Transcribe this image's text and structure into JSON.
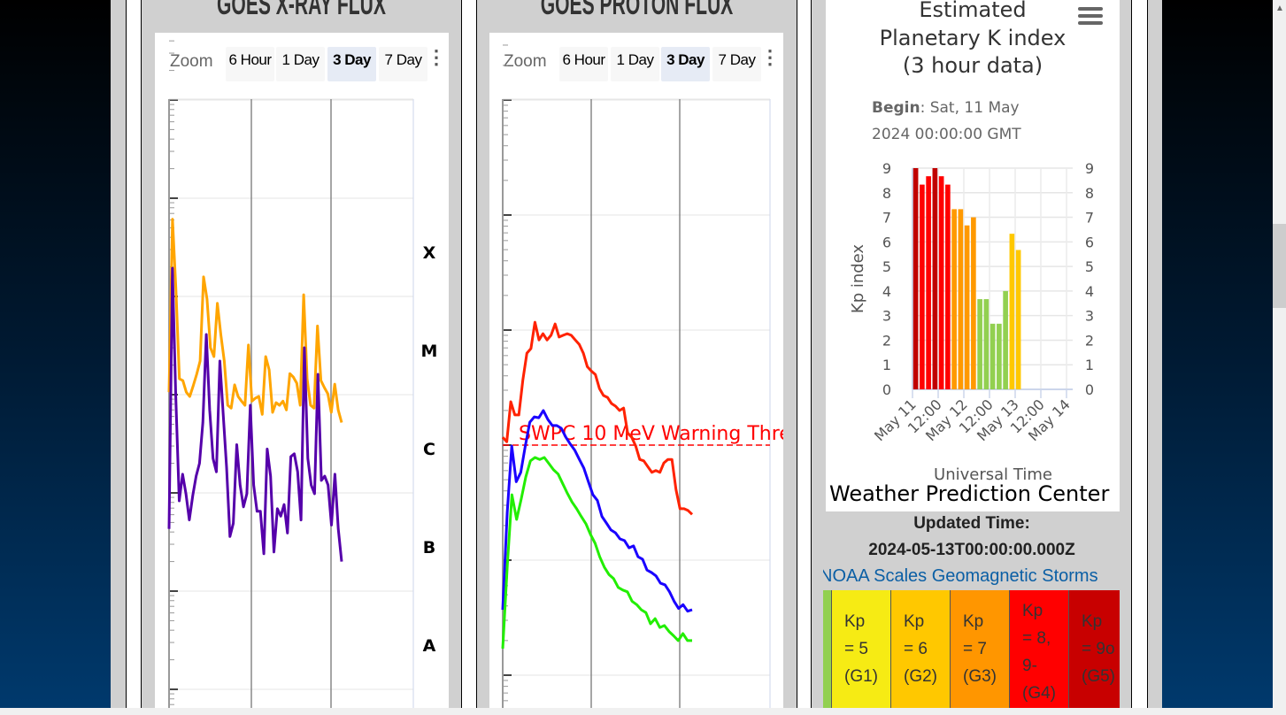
{
  "xray_panel": {
    "title": "GOES X-RAY FLUX",
    "zoom_label": "Zoom",
    "zoom_buttons": [
      "6 Hour",
      "1 Day",
      "3 Day",
      "7 Day"
    ],
    "selected_zoom": "3 Day",
    "class_labels": [
      "X",
      "M",
      "C",
      "B",
      "A"
    ]
  },
  "proton_panel": {
    "title": "GOES PROTON FLUX",
    "zoom_label": "Zoom",
    "zoom_buttons": [
      "6 Hour",
      "1 Day",
      "3 Day",
      "7 Day"
    ],
    "selected_zoom": "3 Day",
    "threshold_label": "SWPC 10 MeV Warning Thre"
  },
  "kp_panel": {
    "title_lines": [
      "Estimated",
      "Planetary K index",
      "(3 hour data)"
    ],
    "begin_label": "Begin",
    "begin_value": ": Sat, 11 May",
    "begin_value_2": "2024 00:00:00 GMT",
    "footer": "Weather Prediction Center",
    "updated_label": "Updated Time:",
    "updated_value": "2024-05-13T00:00:00.000Z",
    "noaa_link": "NOAA Scales Geomagnetic Storms",
    "menu_icon": "hamburger-menu-icon"
  },
  "storm_scale": [
    {
      "lines": [
        "Kp",
        "= 5",
        "(G1)"
      ],
      "color": "#f6eb14"
    },
    {
      "lines": [
        "Kp",
        "= 6",
        "(G2)"
      ],
      "color": "#ffc800"
    },
    {
      "lines": [
        "Kp",
        "= 7",
        "(G3)"
      ],
      "color": "#ff9600"
    },
    {
      "lines": [
        "Kp",
        "= 8,",
        "9-",
        "(G4)"
      ],
      "color": "#ff0000"
    },
    {
      "lines": [
        "Kp",
        "= 9o",
        "(G5)"
      ],
      "color": "#c80000"
    }
  ],
  "chart_data": [
    {
      "type": "line",
      "title": "GOES X-RAY FLUX",
      "y_scale": "log",
      "ylim": [
        1e-09,
        0.01
      ],
      "grid": true,
      "units_note_visible": false,
      "series": [
        {
          "color": "#ffa500",
          "values": [
            1.06e-05,
            0.00061,
            0.000116,
            1.45e-05,
            1.39e-05,
            1.06e-05,
            9.6e-06,
            1.23e-05,
            1.61e-05,
            2.2e-05,
            0.000158,
            9.4e-05,
            3e-05,
            2.44e-05,
            8.5e-05,
            4.1e-05,
            2.2e-05,
            7.8e-06,
            7.3e-06,
            1.26e-05,
            9.6e-06,
            8.6e-06,
            7.8e-06,
            3.2e-05,
            8.6e-06,
            9.2e-06,
            9.6e-06,
            6.3e-06,
            2.44e-05,
            1.79e-05,
            6.6e-06,
            8.3e-06,
            7.8e-06,
            8.6e-06,
            7e-06,
            1.64e-05,
            1.51e-05,
            1.31e-05,
            7.8e-06,
            0.000104,
            1.45e-05,
            7.8e-06,
            7.3e-06,
            5e-05,
            1.39e-05,
            1.18e-05,
            1.02e-05,
            6.6e-06,
            1.28e-05,
            7e-06,
            5.2e-06
          ]
        },
        {
          "color": "#5500aa",
          "values": [
            4.3e-07,
            0.000194,
            9.6e-06,
            8.3e-07,
            1.55e-06,
            9.8e-07,
            5.3e-07,
            9.4e-07,
            1.48e-06,
            2e-06,
            5.2e-06,
            4.1e-05,
            7e-06,
            2.24e-06,
            1.64e-06,
            2.2e-05,
            6.3e-06,
            1.82e-06,
            3.6e-07,
            4.9e-07,
            3.1e-06,
            1.2e-06,
            7.2e-07,
            9.8e-07,
            7.8e-06,
            1.2e-06,
            6.5e-07,
            6.5e-07,
            2.4e-07,
            2.8e-06,
            1.48e-06,
            2.5e-07,
            6.9e-07,
            5.8e-07,
            7.6e-07,
            3.9e-07,
            2.34e-06,
            2.5e-06,
            1.64e-06,
            5.3e-07,
            3e-05,
            2.24e-06,
            1.2e-06,
            9.8e-07,
            1.61e-05,
            1.34e-06,
            1.48e-06,
            1.2e-06,
            4.7e-07,
            1.55e-06,
            4.3e-07,
            2e-07
          ]
        }
      ],
      "class_labels": [
        "X",
        "M",
        "C",
        "B",
        "A"
      ]
    },
    {
      "type": "line",
      "title": "GOES PROTON FLUX",
      "y_scale": "log",
      "ylim": [
        0.01,
        10000
      ],
      "grid": true,
      "threshold": {
        "value": 10,
        "label": "SWPC 10 MeV Warning Thre",
        "color": "#ff0000"
      },
      "series": [
        {
          "color": "#ff2200",
          "values": [
            11.7,
            10.7,
            23.8,
            18.3,
            18.3,
            37,
            63,
            69,
            117,
            82,
            93,
            82,
            90,
            113,
            87,
            90,
            93,
            90,
            82,
            75,
            63,
            48,
            44,
            41,
            31,
            27,
            26,
            23,
            21.8,
            20,
            21,
            12.8,
            11.7,
            9.8,
            7.5,
            7.3,
            6.5,
            5.8,
            6.0,
            5.8,
            7.0,
            7.5,
            7.5,
            4.1,
            2.8,
            2.8,
            2.7,
            2.5
          ]
        },
        {
          "color": "#1a00ff",
          "values": [
            0.37,
            2.6,
            9.8,
            4.8,
            5.8,
            9.8,
            15.8,
            17.6,
            17.3,
            20,
            16.7,
            14.8,
            14.8,
            14,
            11.7,
            10.2,
            9.0,
            7.5,
            6.3,
            4.8,
            3.7,
            3.3,
            2.4,
            2.1,
            1.83,
            1.73,
            1.53,
            1.48,
            1.28,
            1.33,
            1.07,
            1.02,
            0.82,
            0.78,
            0.73,
            0.63,
            0.61,
            0.53,
            0.44,
            0.38,
            0.41,
            0.36,
            0.37
          ]
        },
        {
          "color": "#22ee00",
          "values": [
            0.17,
            0.9,
            3.7,
            2.26,
            3.4,
            5.3,
            7.3,
            7.8,
            7.5,
            7.8,
            6.9,
            6.1,
            5.6,
            4.6,
            3.8,
            3.2,
            2.8,
            2.4,
            2.07,
            1.67,
            1.4,
            1.07,
            0.87,
            0.75,
            0.69,
            0.58,
            0.55,
            0.53,
            0.44,
            0.41,
            0.37,
            0.35,
            0.28,
            0.31,
            0.26,
            0.27,
            0.24,
            0.22,
            0.2,
            0.23,
            0.2,
            0.2
          ]
        }
      ]
    },
    {
      "type": "bar",
      "title": "Estimated Planetary K index (3 hour data)",
      "ylabel": "Kp index",
      "xlabel": "Universal Time",
      "ylim": [
        0,
        9
      ],
      "yticks": [
        "0",
        "1",
        "2",
        "3",
        "4",
        "5",
        "6",
        "7",
        "8",
        "9"
      ],
      "xticks": [
        "May 11",
        "12:00",
        "May 12",
        "12:00",
        "May 13",
        "12:00",
        "May 14"
      ],
      "grid": true,
      "values": [
        9,
        8.33,
        8.67,
        9,
        8.67,
        8.33,
        7.33,
        7.33,
        6.67,
        7,
        3.67,
        3.67,
        2.67,
        2.67,
        4,
        6.33,
        5.67
      ],
      "colors": [
        "#c00000",
        "#ff0000",
        "#ff0000",
        "#c00000",
        "#ff0000",
        "#ff0000",
        "#ff9900",
        "#ff9900",
        "#ff9900",
        "#ff9900",
        "#92d050",
        "#92d050",
        "#92d050",
        "#92d050",
        "#92d050",
        "#ffc800",
        "#ffc800"
      ]
    }
  ]
}
